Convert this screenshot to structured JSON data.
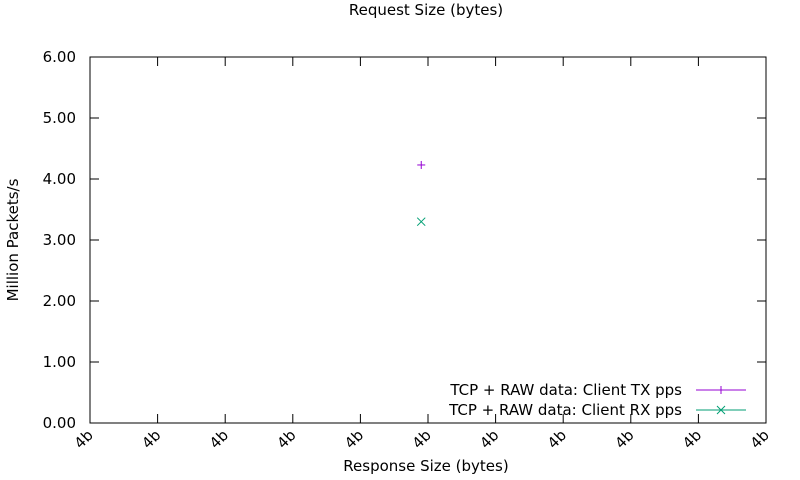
{
  "chart_data": {
    "type": "scatter",
    "title": "Request Size (bytes)",
    "xlabel": "Response Size (bytes)",
    "ylabel": "Million Packets/s",
    "ylim": [
      0,
      6
    ],
    "xlim": [
      0,
      10
    ],
    "x_tick_labels": [
      "4b",
      "4b",
      "4b",
      "4b",
      "4b",
      "4b",
      "4b",
      "4b",
      "4b",
      "4b",
      "4b"
    ],
    "y_ticks": [
      0,
      1,
      2,
      3,
      4,
      5,
      6
    ],
    "y_tick_labels": [
      "0.00",
      "1.00",
      "2.00",
      "3.00",
      "4.00",
      "5.00",
      "6.00"
    ],
    "grid": false,
    "legend_position": "bottom-right",
    "series": [
      {
        "name": "TCP + RAW data: Client TX pps",
        "marker": "+",
        "color": "#9400d3",
        "points": [
          {
            "x": 4.9,
            "y": 4.23
          }
        ]
      },
      {
        "name": "TCP + RAW data: Client RX pps",
        "marker": "x",
        "color": "#009e73",
        "points": [
          {
            "x": 4.9,
            "y": 3.3
          }
        ]
      }
    ]
  }
}
